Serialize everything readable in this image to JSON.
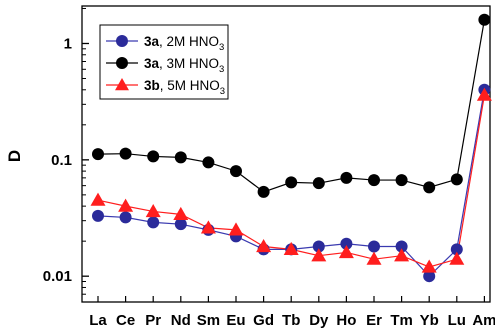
{
  "chart_data": {
    "type": "line",
    "title": "",
    "xlabel": "",
    "ylabel": "D",
    "yscale": "log",
    "ylim": [
      0.006,
      2.1
    ],
    "ticks": [
      {
        "value": 1,
        "label": "1"
      },
      {
        "value": 0.1,
        "label": "0.1"
      },
      {
        "value": 0.01,
        "label": "0.01"
      }
    ],
    "categories": [
      "La",
      "Ce",
      "Pr",
      "Nd",
      "Sm",
      "Eu",
      "Gd",
      "Tb",
      "Dy",
      "Ho",
      "Er",
      "Tm",
      "Yb",
      "Lu",
      "Am"
    ],
    "legend_position": "top-left",
    "series": [
      {
        "name": "3a, 2M HNO3",
        "legend": {
          "bold": "3a",
          "text": ", 2M HNO",
          "sub": "3"
        },
        "marker": "circle",
        "color": "#2b2b9a",
        "line_color": "#3a3ab0",
        "values": [
          0.033,
          0.032,
          0.029,
          0.028,
          0.025,
          0.022,
          0.017,
          0.017,
          0.018,
          0.019,
          0.018,
          0.018,
          0.01,
          0.017,
          0.4
        ]
      },
      {
        "name": "3a, 3M HNO3",
        "legend": {
          "bold": "3a",
          "text": ", 3M HNO",
          "sub": "3"
        },
        "marker": "circle",
        "color": "#000000",
        "line_color": "#000000",
        "values": [
          0.112,
          0.113,
          0.107,
          0.105,
          0.095,
          0.08,
          0.053,
          0.064,
          0.063,
          0.07,
          0.067,
          0.067,
          0.058,
          0.068,
          1.6
        ]
      },
      {
        "name": "3b, 5M HNO3",
        "legend": {
          "bold": "3b",
          "text": ", 5M HNO",
          "sub": "3"
        },
        "marker": "triangle",
        "color": "#ff1e1e",
        "line_color": "#ff1e1e",
        "values": [
          0.045,
          0.04,
          0.036,
          0.034,
          0.026,
          0.025,
          0.018,
          0.017,
          0.015,
          0.016,
          0.014,
          0.015,
          0.012,
          0.014,
          0.36
        ]
      }
    ]
  }
}
